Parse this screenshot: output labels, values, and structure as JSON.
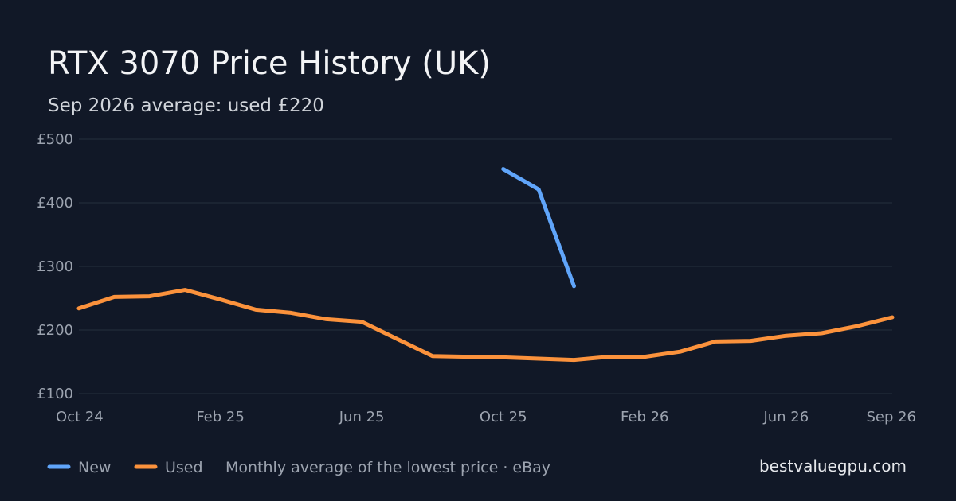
{
  "chart_data": {
    "type": "line",
    "title": "RTX 3070 Price History (UK)",
    "subtitle": "Sep 2026 average: used £220",
    "x_tick_labels": [
      "Oct 24",
      "Feb 25",
      "Jun 25",
      "Oct 25",
      "Feb 26",
      "Jun 26",
      "Sep 26"
    ],
    "y_tick_labels": [
      "£100",
      "£200",
      "£300",
      "£400",
      "£500"
    ],
    "y_ticks": [
      100,
      200,
      300,
      400,
      500
    ],
    "ylim": [
      100,
      500
    ],
    "x": [
      "2024-10",
      "2024-11",
      "2024-12",
      "2025-01",
      "2025-02",
      "2025-03",
      "2025-04",
      "2025-05",
      "2025-06",
      "2025-07",
      "2025-08",
      "2025-09",
      "2025-10",
      "2025-11",
      "2025-12",
      "2026-01",
      "2026-02",
      "2026-03",
      "2026-04",
      "2026-05",
      "2026-06",
      "2026-07",
      "2026-08",
      "2026-09"
    ],
    "grid": true,
    "series": [
      {
        "name": "New",
        "color": "#60a5fa",
        "values": [
          null,
          null,
          null,
          null,
          null,
          null,
          null,
          null,
          null,
          null,
          null,
          null,
          453,
          421,
          269,
          null,
          null,
          null,
          null,
          null,
          null,
          null,
          null,
          null
        ]
      },
      {
        "name": "Used",
        "color": "#fb923c",
        "values": [
          234,
          252,
          253,
          263,
          248,
          232,
          227,
          217,
          213,
          186,
          159,
          158,
          157,
          155,
          153,
          158,
          158,
          166,
          182,
          183,
          191,
          195,
          206,
          220
        ]
      }
    ],
    "legend_position": "bottom-left"
  },
  "footer": {
    "note": "Monthly average of the lowest price · eBay",
    "source": "bestvaluegpu.com"
  }
}
